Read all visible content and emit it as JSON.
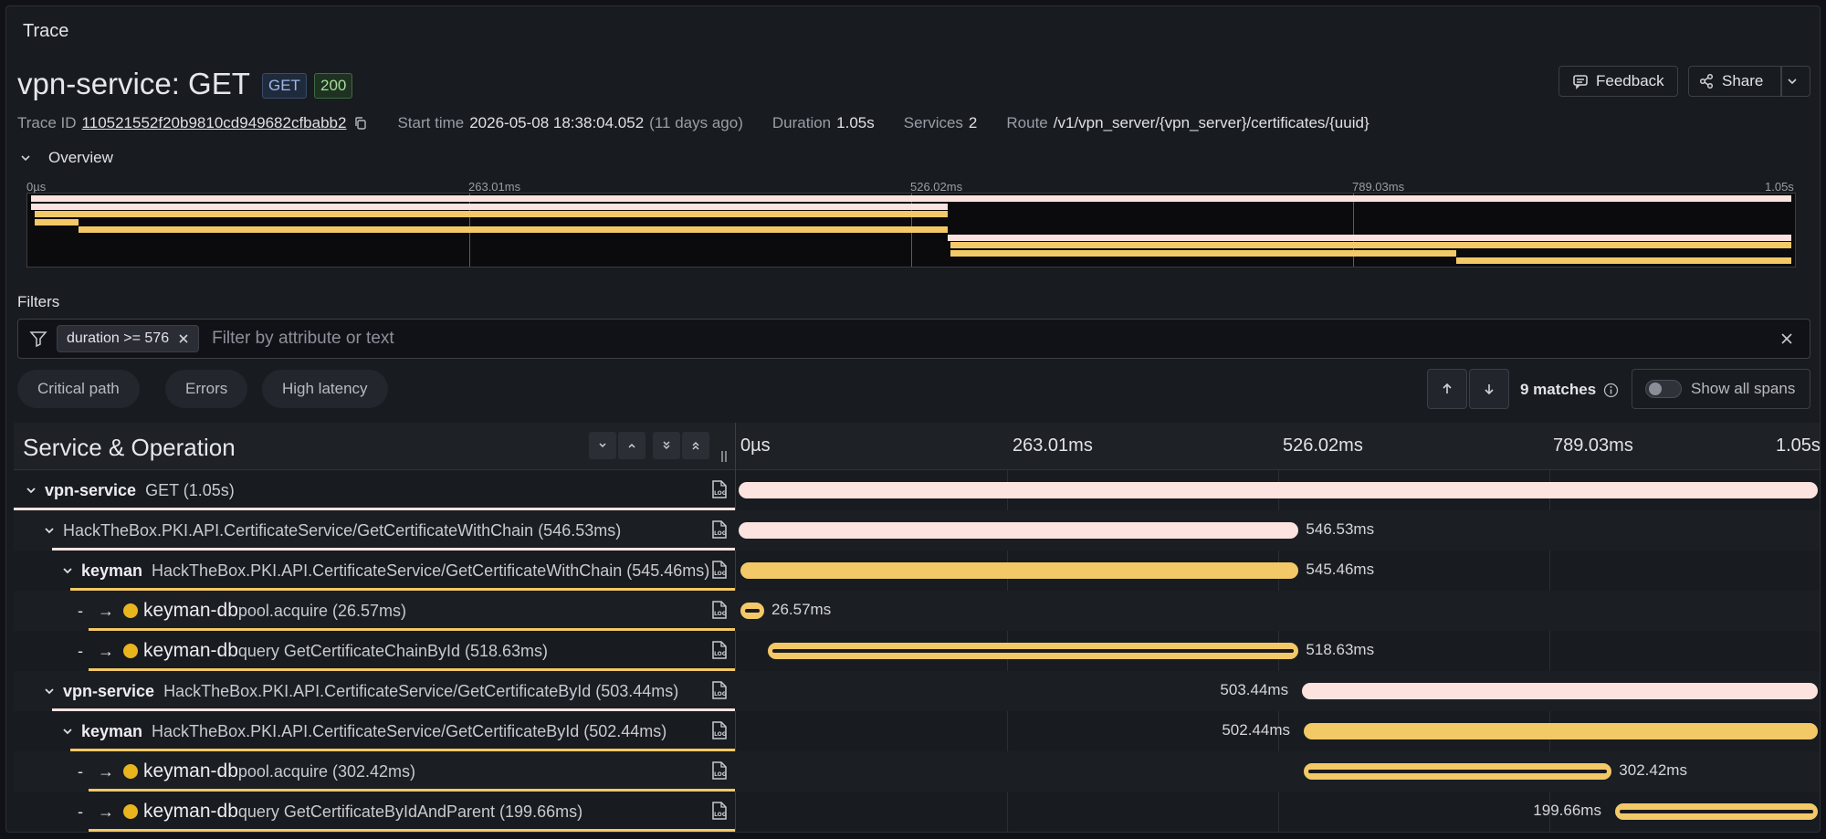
{
  "panel": {
    "title": "Trace"
  },
  "header": {
    "title": "vpn-service: GET",
    "method_badge": "GET",
    "status_badge": "200",
    "feedback_label": "Feedback",
    "share_label": "Share"
  },
  "meta": {
    "trace_id_label": "Trace ID",
    "trace_id": "110521552f20b9810cd949682cfbabb2",
    "start_label": "Start time",
    "start_value": "2026-05-08 18:38:04.052",
    "start_ago": "(11 days ago)",
    "duration_label": "Duration",
    "duration_value": "1.05s",
    "services_label": "Services",
    "services_value": "2",
    "route_label": "Route",
    "route_value": "/v1/vpn_server/{vpn_server}/certificates/{uuid}"
  },
  "overview": {
    "label": "Overview",
    "ticks": [
      "0µs",
      "263.01ms",
      "526.02ms",
      "789.03ms",
      "1.05s"
    ]
  },
  "filters": {
    "label": "Filters",
    "chip": "duration >= 576",
    "placeholder": "Filter by attribute or text",
    "pills": [
      "Critical path",
      "Errors",
      "High latency"
    ],
    "matches": "9 matches",
    "show_all": "Show all spans"
  },
  "table": {
    "header": "Service & Operation",
    "ticks": [
      "0µs",
      "263.01ms",
      "526.02ms",
      "789.03ms",
      "1.05s"
    ],
    "spans": [
      {
        "service": "vpn-service",
        "op": "GET (1.05s)",
        "dur": "",
        "start": 0,
        "end": 1.0,
        "color": "pink",
        "indent": 0,
        "kind": "root"
      },
      {
        "service": "",
        "op": "HackTheBox.PKI.API.CertificateService/GetCertificateWithChain (546.53ms)",
        "dur": "546.53ms",
        "start": 0,
        "end": 0.5206,
        "color": "pink",
        "indent": 1,
        "kind": "svc"
      },
      {
        "service": "keyman",
        "op": "HackTheBox.PKI.API.CertificateService/GetCertificateWithChain (545.46ms)",
        "dur": "545.46ms",
        "start": 0.002,
        "end": 0.5206,
        "color": "gold",
        "indent": 2,
        "kind": "svc"
      },
      {
        "service": "keyman-db",
        "op": "pool.acquire (26.57ms)",
        "dur": "26.57ms",
        "start": 0.002,
        "end": 0.027,
        "color": "db",
        "indent": 3,
        "kind": "db"
      },
      {
        "service": "keyman-db",
        "op": "query GetCertificateChainById (518.63ms)",
        "dur": "518.63ms",
        "start": 0.027,
        "end": 0.5206,
        "color": "db",
        "indent": 3,
        "kind": "db"
      },
      {
        "service": "vpn-service",
        "op": "HackTheBox.PKI.API.CertificateService/GetCertificateById (503.44ms)",
        "dur": "503.44ms",
        "start": 0.5206,
        "end": 1.0,
        "color": "pink",
        "indent": 1,
        "kind": "svc"
      },
      {
        "service": "keyman",
        "op": "HackTheBox.PKI.API.CertificateService/GetCertificateById (502.44ms)",
        "dur": "502.44ms",
        "start": 0.5222,
        "end": 1.0,
        "color": "gold",
        "indent": 2,
        "kind": "svc"
      },
      {
        "service": "keyman-db",
        "op": "pool.acquire (302.42ms)",
        "dur": "302.42ms",
        "start": 0.5222,
        "end": 0.8097,
        "color": "db",
        "indent": 3,
        "kind": "db"
      },
      {
        "service": "keyman-db",
        "op": "query GetCertificateByIdAndParent (199.66ms)",
        "dur": "199.66ms",
        "start": 0.8097,
        "end": 1.0,
        "color": "db",
        "indent": 3,
        "kind": "db"
      }
    ]
  },
  "colors": {
    "pink": "#fde3df",
    "gold": "#f3c967",
    "db_dot": "#e8b51e",
    "bg": "#181b1f"
  }
}
